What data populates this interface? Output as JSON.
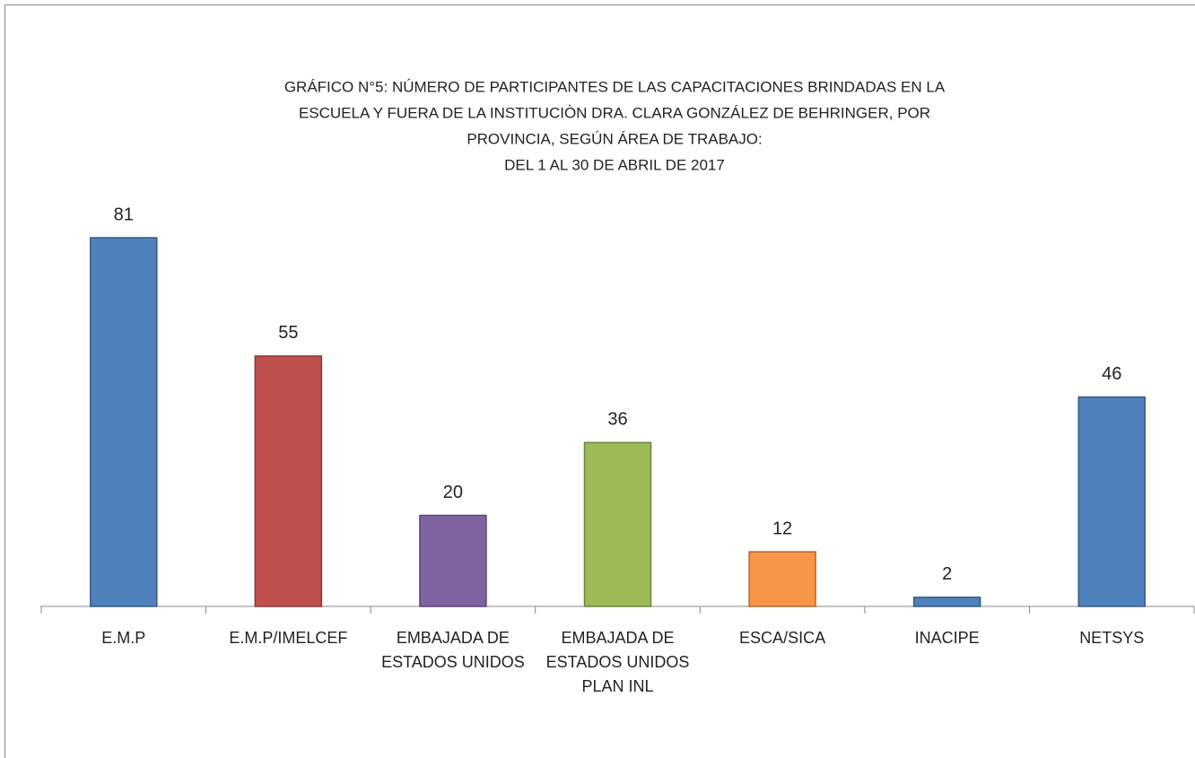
{
  "chart_data": {
    "type": "bar",
    "title": [
      "GRÁFICO N°5: NÚMERO DE PARTICIPANTES DE LAS CAPACITACIONES BRINDADAS EN LA",
      "ESCUELA Y FUERA DE LA INSTITUCIÒN  DRA. CLARA GONZÁLEZ DE BEHRINGER, POR",
      "PROVINCIA, SEGÚN ÁREA DE TRABAJO:",
      "DEL 1 AL 30 DE ABRIL DE 2017"
    ],
    "categories": [
      "E.M.P",
      "E.M.P/IMELCEF",
      "EMBAJADA DE ESTADOS UNIDOS",
      "EMBAJADA DE ESTADOS UNIDOS  PLAN INL",
      "ESCA/SICA",
      "INACIPE",
      "NETSYS"
    ],
    "values": [
      81,
      55,
      20,
      36,
      12,
      2,
      46
    ],
    "colors": [
      "#4f81bd",
      "#c0504d",
      "#8064a2",
      "#9bbb59",
      "#f79646",
      "#4f81bd",
      "#4f81bd"
    ]
  }
}
